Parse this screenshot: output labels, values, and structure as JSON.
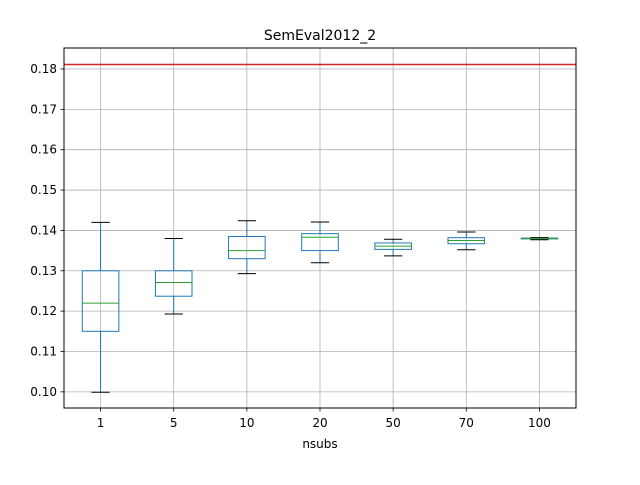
{
  "chart_data": {
    "type": "box",
    "title": "SemEval2012_2",
    "xlabel": "nsubs",
    "ylabel": "",
    "categories": [
      "1",
      "5",
      "10",
      "20",
      "50",
      "70",
      "100"
    ],
    "boxes": [
      {
        "whisker_low": 0.0999,
        "q1": 0.115,
        "median": 0.122,
        "q3": 0.13,
        "whisker_high": 0.142
      },
      {
        "whisker_low": 0.1193,
        "q1": 0.1237,
        "median": 0.1271,
        "q3": 0.13,
        "whisker_high": 0.138
      },
      {
        "whisker_low": 0.1293,
        "q1": 0.133,
        "median": 0.135,
        "q3": 0.1385,
        "whisker_high": 0.1424
      },
      {
        "whisker_low": 0.132,
        "q1": 0.135,
        "median": 0.1383,
        "q3": 0.1392,
        "whisker_high": 0.1421
      },
      {
        "whisker_low": 0.1337,
        "q1": 0.1353,
        "median": 0.1361,
        "q3": 0.1369,
        "whisker_high": 0.1378
      },
      {
        "whisker_low": 0.1352,
        "q1": 0.1367,
        "median": 0.1375,
        "q3": 0.1382,
        "whisker_high": 0.1396
      },
      {
        "whisker_low": 0.1377,
        "q1": 0.1379,
        "median": 0.138,
        "q3": 0.1381,
        "whisker_high": 0.1382
      }
    ],
    "reference_line": {
      "y": 0.1811,
      "color": "#d62728"
    },
    "ylim": [
      0.096,
      0.1852
    ],
    "yticks": [
      0.1,
      0.11,
      0.12,
      0.13,
      0.14,
      0.15,
      0.16,
      0.17,
      0.18
    ],
    "ytick_labels": [
      "0.10",
      "0.11",
      "0.12",
      "0.13",
      "0.14",
      "0.15",
      "0.16",
      "0.17",
      "0.18"
    ],
    "grid": true,
    "colors": {
      "box": "#1f77b4",
      "median": "#2ca02c",
      "cap": "#000000",
      "grid": "#b0b0b0"
    }
  }
}
